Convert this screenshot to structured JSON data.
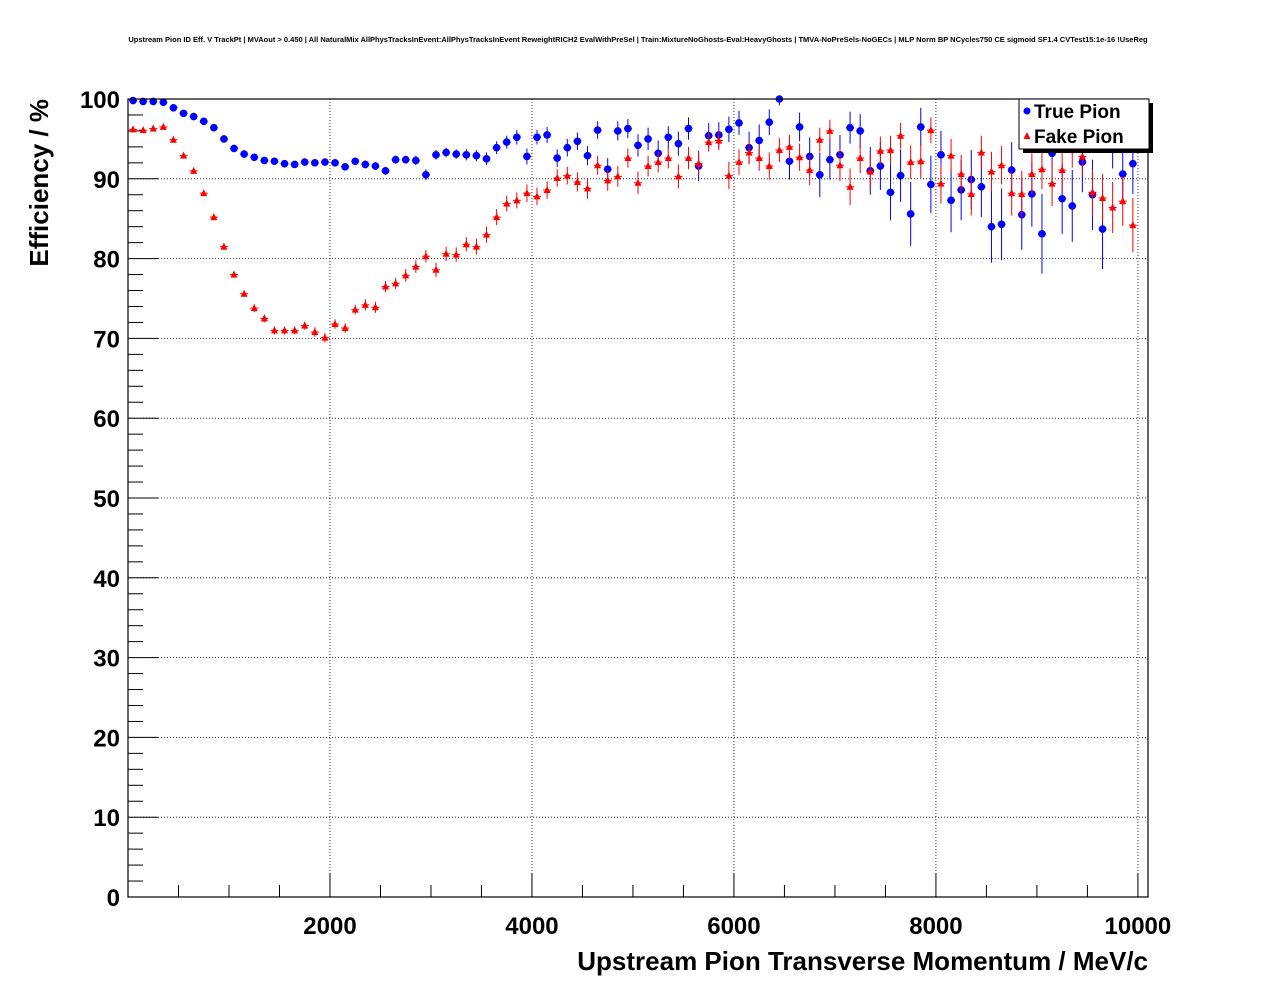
{
  "chart_data": {
    "type": "scatter",
    "title": "Upstream Pion ID Eff. V TrackPt | MVAout > 0.450 | All NaturalMix AllPhysTracksInEvent:AllPhysTracksInEvent ReweightRICH2 EvalWithPreSel | Train:MixtureNoGhosts-Eval:HeavyGhosts | TMVA-NoPreSels-NoGECs | MLP Norm BP NCycles750 CE sigmoid SF1.4 CVTest15:1e-16 !UseReg",
    "xlabel": "Upstream Pion Transverse Momentum / MeV/c",
    "ylabel": "Efficiency / %",
    "xlim": [
      0,
      10100
    ],
    "ylim": [
      0,
      100
    ],
    "x_ticks": [
      "2000",
      "4000",
      "6000",
      "8000",
      "10000"
    ],
    "y_ticks": [
      "0",
      "10",
      "20",
      "30",
      "40",
      "50",
      "60",
      "70",
      "80",
      "90",
      "100"
    ],
    "grid": true,
    "legend_position": "top-right",
    "series": [
      {
        "name": "True Pion",
        "color": "#0000ff",
        "marker": "circle",
        "points": [
          [
            50,
            99.8,
            0.1
          ],
          [
            150,
            99.7,
            0.1
          ],
          [
            250,
            99.7,
            0.1
          ],
          [
            350,
            99.6,
            0.1
          ],
          [
            450,
            98.9,
            0.2
          ],
          [
            550,
            98.2,
            0.2
          ],
          [
            650,
            97.8,
            0.2
          ],
          [
            750,
            97.2,
            0.3
          ],
          [
            850,
            96.4,
            0.3
          ],
          [
            950,
            95.0,
            0.3
          ],
          [
            1050,
            93.8,
            0.3
          ],
          [
            1150,
            93.1,
            0.3
          ],
          [
            1250,
            92.7,
            0.3
          ],
          [
            1350,
            92.3,
            0.3
          ],
          [
            1450,
            92.2,
            0.3
          ],
          [
            1550,
            91.9,
            0.3
          ],
          [
            1650,
            91.8,
            0.4
          ],
          [
            1750,
            92.1,
            0.4
          ],
          [
            1850,
            92.0,
            0.4
          ],
          [
            1950,
            92.1,
            0.4
          ],
          [
            2050,
            92.0,
            0.4
          ],
          [
            2150,
            91.5,
            0.4
          ],
          [
            2250,
            92.2,
            0.4
          ],
          [
            2350,
            91.8,
            0.5
          ],
          [
            2450,
            91.6,
            0.5
          ],
          [
            2550,
            91.0,
            0.5
          ],
          [
            2650,
            92.4,
            0.5
          ],
          [
            2750,
            92.4,
            0.5
          ],
          [
            2850,
            92.3,
            0.6
          ],
          [
            2950,
            90.5,
            0.7
          ],
          [
            3050,
            93.0,
            0.6
          ],
          [
            3150,
            93.3,
            0.6
          ],
          [
            3250,
            93.1,
            0.6
          ],
          [
            3350,
            93.0,
            0.7
          ],
          [
            3450,
            92.9,
            0.7
          ],
          [
            3550,
            92.5,
            0.8
          ],
          [
            3650,
            93.9,
            0.8
          ],
          [
            3750,
            94.6,
            0.8
          ],
          [
            3850,
            95.2,
            0.9
          ],
          [
            3950,
            92.8,
            1.0
          ],
          [
            4050,
            95.2,
            0.9
          ],
          [
            4150,
            95.5,
            1.0
          ],
          [
            4250,
            92.6,
            1.1
          ],
          [
            4350,
            93.9,
            1.1
          ],
          [
            4450,
            94.7,
            1.1
          ],
          [
            4550,
            92.9,
            1.2
          ],
          [
            4650,
            96.1,
            1.1
          ],
          [
            4750,
            91.2,
            1.4
          ],
          [
            4850,
            96.0,
            1.2
          ],
          [
            4950,
            96.3,
            1.2
          ],
          [
            5050,
            94.2,
            1.4
          ],
          [
            5150,
            95.0,
            1.4
          ],
          [
            5250,
            93.2,
            1.6
          ],
          [
            5350,
            95.2,
            1.4
          ],
          [
            5450,
            94.4,
            1.5
          ],
          [
            5550,
            96.3,
            1.4
          ],
          [
            5650,
            91.6,
            1.9
          ],
          [
            5750,
            95.4,
            1.6
          ],
          [
            5850,
            95.5,
            1.6
          ],
          [
            5950,
            96.2,
            1.6
          ],
          [
            6050,
            97.0,
            1.5
          ],
          [
            6150,
            93.9,
            2.0
          ],
          [
            6250,
            94.8,
            2.0
          ],
          [
            6350,
            97.1,
            1.6
          ],
          [
            6450,
            100.0,
            0.8
          ],
          [
            6550,
            92.2,
            2.3
          ],
          [
            6650,
            96.5,
            1.8
          ],
          [
            6750,
            92.8,
            2.4
          ],
          [
            6850,
            90.5,
            2.8
          ],
          [
            6950,
            92.4,
            2.5
          ],
          [
            7050,
            93.0,
            2.5
          ],
          [
            7150,
            96.4,
            2.0
          ],
          [
            7250,
            96.0,
            2.1
          ],
          [
            7350,
            91.0,
            3.0
          ],
          [
            7450,
            91.6,
            3.0
          ],
          [
            7550,
            88.3,
            3.5
          ],
          [
            7650,
            90.4,
            3.3
          ],
          [
            7750,
            85.6,
            4.0
          ],
          [
            7850,
            96.5,
            2.4
          ],
          [
            7950,
            89.3,
            3.6
          ],
          [
            8050,
            93.0,
            3.0
          ],
          [
            8150,
            87.3,
            4.0
          ],
          [
            8250,
            88.6,
            3.8
          ],
          [
            8350,
            89.9,
            3.7
          ],
          [
            8450,
            89.0,
            3.8
          ],
          [
            8550,
            84.0,
            4.5
          ],
          [
            8650,
            84.3,
            4.5
          ],
          [
            8750,
            91.1,
            3.5
          ],
          [
            8850,
            85.5,
            4.4
          ],
          [
            8950,
            88.1,
            4.1
          ],
          [
            9050,
            83.1,
            5.0
          ],
          [
            9150,
            93.2,
            3.5
          ],
          [
            9250,
            87.5,
            4.4
          ],
          [
            9350,
            86.6,
            4.5
          ],
          [
            9450,
            92.1,
            3.8
          ],
          [
            9550,
            88.0,
            4.4
          ],
          [
            9650,
            83.7,
            5.0
          ],
          [
            9750,
            94.5,
            3.2
          ],
          [
            9850,
            90.6,
            4.0
          ],
          [
            9950,
            91.9,
            3.8
          ]
        ]
      },
      {
        "name": "Fake Pion",
        "color": "#ff0000",
        "marker": "triangle",
        "points": [
          [
            50,
            96.2,
            0.2
          ],
          [
            150,
            96.1,
            0.2
          ],
          [
            250,
            96.3,
            0.2
          ],
          [
            350,
            96.5,
            0.2
          ],
          [
            450,
            94.9,
            0.3
          ],
          [
            550,
            92.9,
            0.3
          ],
          [
            650,
            91.0,
            0.3
          ],
          [
            750,
            88.2,
            0.3
          ],
          [
            850,
            85.2,
            0.4
          ],
          [
            950,
            81.5,
            0.4
          ],
          [
            1050,
            78.0,
            0.4
          ],
          [
            1150,
            75.6,
            0.4
          ],
          [
            1250,
            73.8,
            0.5
          ],
          [
            1350,
            72.5,
            0.5
          ],
          [
            1450,
            71.0,
            0.5
          ],
          [
            1550,
            71.0,
            0.5
          ],
          [
            1650,
            71.0,
            0.5
          ],
          [
            1750,
            71.6,
            0.5
          ],
          [
            1850,
            70.8,
            0.6
          ],
          [
            1950,
            70.1,
            0.6
          ],
          [
            2050,
            71.8,
            0.6
          ],
          [
            2150,
            71.3,
            0.6
          ],
          [
            2250,
            73.6,
            0.6
          ],
          [
            2350,
            74.2,
            0.7
          ],
          [
            2450,
            73.9,
            0.7
          ],
          [
            2550,
            76.5,
            0.7
          ],
          [
            2650,
            76.9,
            0.7
          ],
          [
            2750,
            77.9,
            0.8
          ],
          [
            2850,
            79.0,
            0.8
          ],
          [
            2950,
            80.3,
            0.8
          ],
          [
            3050,
            78.6,
            0.9
          ],
          [
            3150,
            80.6,
            0.9
          ],
          [
            3250,
            80.5,
            0.9
          ],
          [
            3350,
            81.8,
            0.9
          ],
          [
            3450,
            81.5,
            1.0
          ],
          [
            3550,
            83.0,
            1.0
          ],
          [
            3650,
            85.2,
            1.0
          ],
          [
            3750,
            86.9,
            1.0
          ],
          [
            3850,
            87.3,
            1.0
          ],
          [
            3950,
            88.2,
            1.1
          ],
          [
            4050,
            87.8,
            1.1
          ],
          [
            4150,
            88.6,
            1.1
          ],
          [
            4250,
            90.1,
            1.1
          ],
          [
            4350,
            90.4,
            1.1
          ],
          [
            4450,
            89.6,
            1.2
          ],
          [
            4550,
            88.8,
            1.3
          ],
          [
            4650,
            91.7,
            1.2
          ],
          [
            4750,
            89.8,
            1.3
          ],
          [
            4850,
            90.3,
            1.3
          ],
          [
            4950,
            92.6,
            1.2
          ],
          [
            5050,
            89.5,
            1.4
          ],
          [
            5150,
            91.6,
            1.3
          ],
          [
            5250,
            92.1,
            1.3
          ],
          [
            5350,
            92.6,
            1.3
          ],
          [
            5450,
            90.3,
            1.5
          ],
          [
            5550,
            92.6,
            1.4
          ],
          [
            5650,
            91.9,
            1.5
          ],
          [
            5750,
            94.6,
            1.2
          ],
          [
            5850,
            94.8,
            1.2
          ],
          [
            5950,
            90.4,
            1.7
          ],
          [
            6050,
            92.1,
            1.6
          ],
          [
            6150,
            93.3,
            1.5
          ],
          [
            6250,
            92.6,
            1.6
          ],
          [
            6350,
            91.6,
            1.7
          ],
          [
            6450,
            93.6,
            1.5
          ],
          [
            6550,
            94.0,
            1.5
          ],
          [
            6650,
            92.7,
            1.7
          ],
          [
            6750,
            91.1,
            1.9
          ],
          [
            6850,
            94.9,
            1.5
          ],
          [
            6950,
            96.0,
            1.4
          ],
          [
            7050,
            91.7,
            2.0
          ],
          [
            7150,
            89.0,
            2.3
          ],
          [
            7250,
            92.6,
            1.9
          ],
          [
            7350,
            90.9,
            2.1
          ],
          [
            7450,
            93.5,
            1.8
          ],
          [
            7550,
            93.6,
            1.8
          ],
          [
            7650,
            95.4,
            1.6
          ],
          [
            7750,
            92.1,
            2.1
          ],
          [
            7850,
            92.2,
            2.1
          ],
          [
            7950,
            96.1,
            1.6
          ],
          [
            8050,
            89.4,
            2.5
          ],
          [
            8150,
            92.9,
            2.1
          ],
          [
            8250,
            90.6,
            2.4
          ],
          [
            8350,
            88.1,
            2.7
          ],
          [
            8450,
            93.3,
            2.1
          ],
          [
            8550,
            90.9,
            2.5
          ],
          [
            8650,
            91.7,
            2.4
          ],
          [
            8750,
            88.2,
            2.8
          ],
          [
            8850,
            88.1,
            2.9
          ],
          [
            8950,
            90.6,
            2.6
          ],
          [
            9050,
            91.2,
            2.5
          ],
          [
            9150,
            89.4,
            2.8
          ],
          [
            9250,
            91.1,
            2.6
          ],
          [
            9350,
            93.6,
            2.2
          ],
          [
            9450,
            92.8,
            2.4
          ],
          [
            9550,
            88.3,
            2.9
          ],
          [
            9650,
            87.6,
            3.0
          ],
          [
            9750,
            86.4,
            3.2
          ],
          [
            9850,
            87.2,
            3.1
          ],
          [
            9950,
            84.2,
            3.4
          ]
        ]
      }
    ]
  }
}
